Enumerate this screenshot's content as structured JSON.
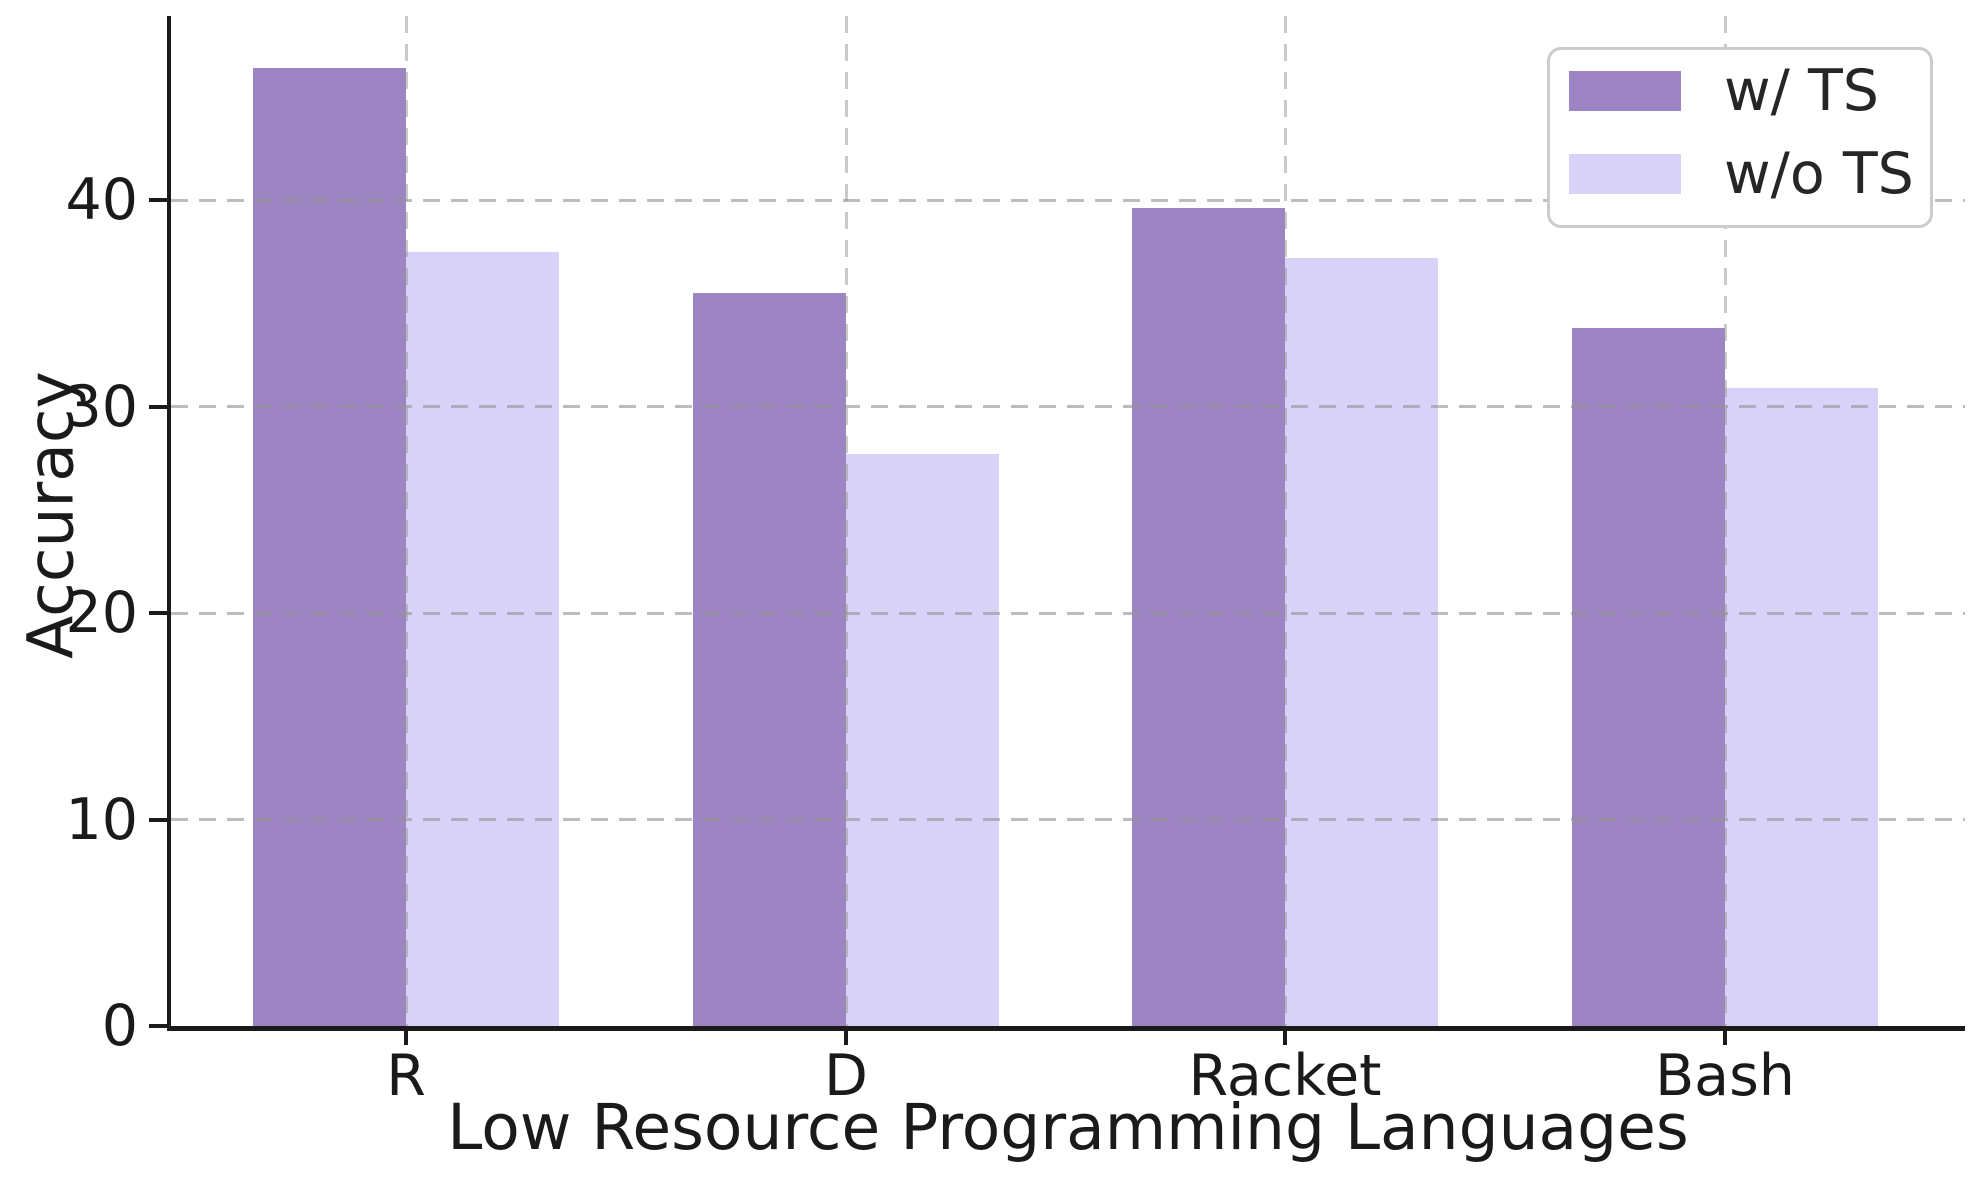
{
  "chart_data": {
    "type": "bar",
    "title": "",
    "categories": [
      "R",
      "D",
      "Racket",
      "Bash"
    ],
    "series": [
      {
        "name": "w/ TS",
        "color": "#9c85c2",
        "values": [
          46.4,
          35.5,
          39.6,
          33.8
        ]
      },
      {
        "name": "w/o TS",
        "color": "#d8d1f8",
        "values": [
          37.5,
          27.7,
          37.2,
          30.9
        ]
      }
    ],
    "xlabel": "Low Resource Programming Languages",
    "ylabel": "Accuracy",
    "yticks": [
      0,
      10,
      20,
      30,
      40
    ],
    "ylim": [
      0,
      48.8
    ],
    "grid": true,
    "grid_style": "dashed",
    "legend_position": "upper right",
    "colors": {
      "axis": "#1a1a1a",
      "gridline": "#c8c8c8",
      "legend_border": "#cccccc",
      "background": "#ffffff"
    }
  }
}
